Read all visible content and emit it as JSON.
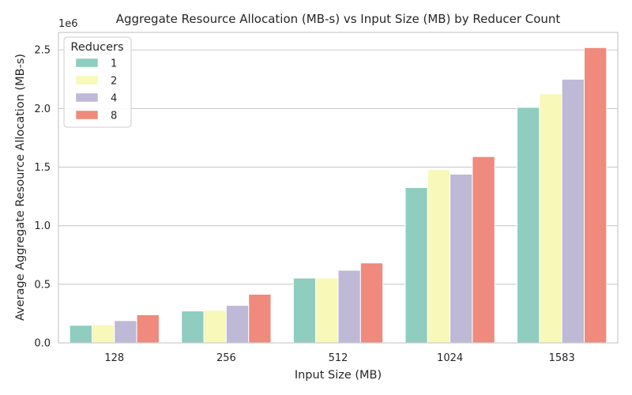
{
  "chart_data": {
    "type": "bar",
    "title": "Aggregate Resource Allocation (MB-s) vs Input Size (MB) by Reducer Count",
    "xlabel": "Input Size (MB)",
    "ylabel": "Average Aggregate Resource Allocation (MB-s)",
    "y_offset_label": "1e6",
    "categories": [
      "128",
      "256",
      "512",
      "1024",
      "1583"
    ],
    "y_ticks": [
      "0.0",
      "0.5",
      "1.0",
      "1.5",
      "2.0",
      "2.5"
    ],
    "y_tick_values": [
      0,
      500000,
      1000000,
      1500000,
      2000000,
      2500000
    ],
    "ylim": [
      0,
      2650000
    ],
    "grid": "horizontal",
    "legend": {
      "title": "Reducers",
      "placement": "top-left"
    },
    "series": [
      {
        "name": "1",
        "color": "#8ecdc0",
        "values": [
          150000,
          272000,
          553000,
          1325000,
          2010000
        ]
      },
      {
        "name": "2",
        "color": "#f8f8b8",
        "values": [
          155000,
          278000,
          553000,
          1478000,
          2125000
        ]
      },
      {
        "name": "4",
        "color": "#bdb9d6",
        "values": [
          190000,
          320000,
          620000,
          1440000,
          2250000
        ]
      },
      {
        "name": "8",
        "color": "#ef8a7c",
        "values": [
          240000,
          415000,
          682000,
          1590000,
          2520000
        ]
      }
    ]
  }
}
